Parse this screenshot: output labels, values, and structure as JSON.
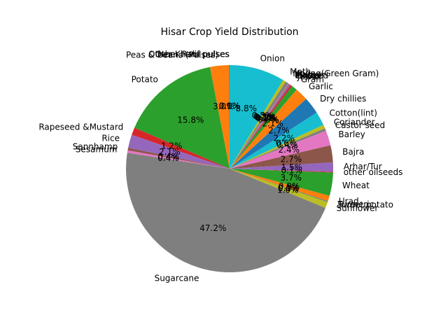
{
  "chart_data": {
    "type": "pie",
    "title": "Hisar Crop Yield Distribution",
    "startangle_deg": 90,
    "direction": "counterclockwise",
    "autopct_format": "%.1f%%",
    "categories": [
      "Other Kharif pulses",
      "Peas & beans (Pulses)",
      "Potato",
      "Rapeseed &Mustard",
      "Rice",
      "Sannhamp",
      "Sesamum",
      "Sugarcane",
      "Sunflower",
      "Sweet potato",
      "Turmeric",
      "Urad",
      "Wheat",
      "other oilseeds",
      "Arhar/Tur",
      "Bajra",
      "Barley",
      "Castor seed",
      "Coriander",
      "Cotton(lint)",
      "Dry chillies",
      "Garlic",
      "Gram",
      "Jowar",
      "Linseed",
      "Maize",
      "Masoor",
      "Moong(Green Gram)",
      "Moth",
      "Onion",
      "Other Rabi pulses"
    ],
    "values": [
      0.1,
      3.0,
      15.8,
      1.2,
      2.1,
      0.4,
      0.4,
      47.2,
      1.0,
      0.0,
      0.1,
      0.9,
      3.7,
      0.1,
      1.5,
      2.7,
      2.4,
      0.4,
      0.6,
      2.2,
      2.7,
      2.1,
      0.9,
      0.3,
      0.2,
      0.1,
      0.1,
      0.5,
      0.5,
      8.8,
      0.0
    ],
    "pct_labels": [
      "0.1%",
      "3.0%",
      "15.8%",
      "1.2%",
      "2.1%",
      "0.4%",
      "0.4%",
      "47.2%",
      "1.0%",
      "0.0%",
      "0.1%",
      "0.9%",
      "3.7%",
      "0.1%",
      "1.5%",
      "2.7%",
      "2.4%",
      "0.4%",
      "0.6%",
      "2.2%",
      "2.7%",
      "2.1%",
      "0.9%",
      "0.3%",
      "0.2%",
      "0.1%",
      "0.1%",
      "0.5%",
      "0.5%",
      "8.8%",
      "0.0%"
    ],
    "colors": [
      "#1f77b4",
      "#ff7f0e",
      "#2ca02c",
      "#d62728",
      "#9467bd",
      "#8c564b",
      "#e377c2",
      "#7f7f7f",
      "#bcbd22",
      "#17becf"
    ]
  }
}
